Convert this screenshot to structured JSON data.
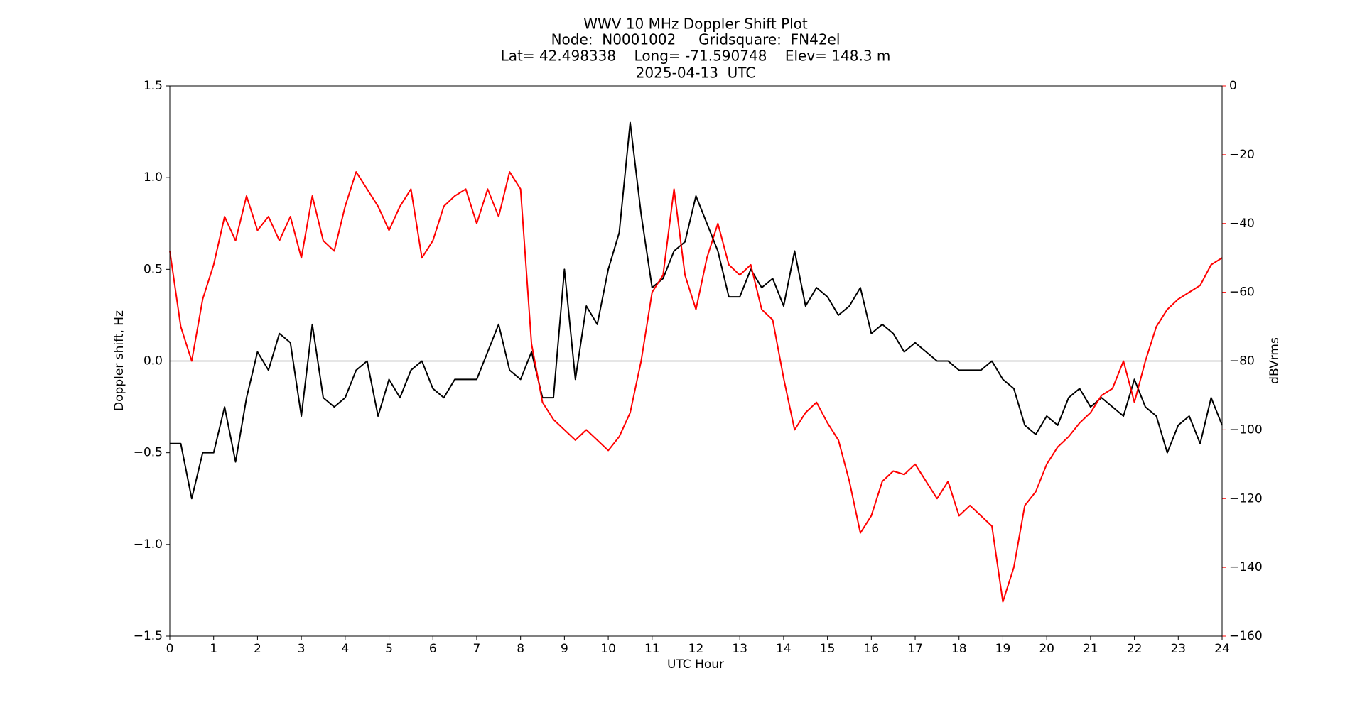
{
  "chart_data": {
    "type": "line",
    "title": [
      "WWV 10 MHz Doppler Shift Plot",
      "Node:  N0001002     Gridsquare:  FN42el",
      "Lat= 42.498338    Long= -71.590748    Elev= 148.3 m",
      "2025-04-13  UTC"
    ],
    "x_label": "UTC Hour",
    "y_label": "Doppler shift, Hz",
    "y2_label": "dBVrms",
    "y2_color": "#ff0000",
    "x": [
      0,
      0.25,
      0.5,
      0.75,
      1,
      1.25,
      1.5,
      1.75,
      2,
      2.25,
      2.5,
      2.75,
      3,
      3.25,
      3.5,
      3.75,
      4,
      4.25,
      4.5,
      4.75,
      5,
      5.25,
      5.5,
      5.75,
      6,
      6.25,
      6.5,
      6.75,
      7,
      7.25,
      7.5,
      7.75,
      8,
      8.25,
      8.5,
      8.75,
      9,
      9.25,
      9.5,
      9.75,
      10,
      10.25,
      10.5,
      10.75,
      11,
      11.25,
      11.5,
      11.75,
      12,
      12.25,
      12.5,
      12.75,
      13,
      13.25,
      13.5,
      13.75,
      14,
      14.25,
      14.5,
      14.75,
      15,
      15.25,
      15.5,
      15.75,
      16,
      16.25,
      16.5,
      16.75,
      17,
      17.25,
      17.5,
      17.75,
      18,
      18.25,
      18.5,
      18.75,
      19,
      19.25,
      19.5,
      19.75,
      20,
      20.25,
      20.5,
      20.75,
      21,
      21.25,
      21.5,
      21.75,
      22,
      22.25,
      22.5,
      22.75,
      23,
      23.25,
      23.5,
      23.75,
      24
    ],
    "series": [
      {
        "color": "#000000",
        "values": [
          -0.45,
          -0.45,
          -0.75,
          -0.5,
          -0.5,
          -0.25,
          -0.55,
          -0.2,
          0.05,
          -0.05,
          0.15,
          0.1,
          -0.3,
          0.2,
          -0.2,
          -0.25,
          -0.2,
          -0.05,
          0.0,
          -0.3,
          -0.1,
          -0.2,
          -0.05,
          0.0,
          -0.15,
          -0.2,
          -0.1,
          -0.1,
          -0.1,
          0.05,
          0.2,
          -0.05,
          -0.1,
          0.05,
          -0.2,
          -0.2,
          0.5,
          -0.1,
          0.3,
          0.2,
          0.5,
          0.7,
          1.3,
          0.8,
          0.4,
          0.45,
          0.6,
          0.65,
          0.9,
          0.75,
          0.6,
          0.35,
          0.35,
          0.5,
          0.4,
          0.45,
          0.3,
          0.6,
          0.3,
          0.4,
          0.35,
          0.25,
          0.3,
          0.4,
          0.15,
          0.2,
          0.15,
          0.05,
          0.1,
          0.05,
          0.0,
          0.0,
          -0.05,
          -0.05,
          -0.05,
          0.0,
          -0.1,
          -0.15,
          -0.35,
          -0.4,
          -0.3,
          -0.35,
          -0.2,
          -0.15,
          -0.25,
          -0.2,
          -0.25,
          -0.3,
          -0.1,
          -0.25,
          -0.3,
          -0.5,
          -0.35,
          -0.3,
          -0.45,
          -0.2,
          -0.35
        ]
      },
      {
        "color": "#ff0000",
        "axis": "y2",
        "values": [
          -48,
          -70,
          -80,
          -62,
          -52,
          -38,
          -45,
          -32,
          -42,
          -38,
          -45,
          -38,
          -50,
          -32,
          -45,
          -48,
          -35,
          -25,
          -30,
          -35,
          -42,
          -35,
          -30,
          -50,
          -45,
          -35,
          -32,
          -30,
          -40,
          -30,
          -38,
          -25,
          -30,
          -75,
          -92,
          -97,
          -100,
          -103,
          -100,
          -103,
          -106,
          -102,
          -95,
          -80,
          -60,
          -55,
          -30,
          -55,
          -65,
          -50,
          -40,
          -52,
          -55,
          -52,
          -65,
          -68,
          -85,
          -100,
          -95,
          -92,
          -98,
          -103,
          -115,
          -130,
          -125,
          -115,
          -112,
          -113,
          -110,
          -115,
          -120,
          -115,
          -125,
          -122,
          -125,
          -128,
          -150,
          -140,
          -122,
          -118,
          -110,
          -105,
          -102,
          -98,
          -95,
          -90,
          -88,
          -80,
          -92,
          -80,
          -70,
          -65,
          -62,
          -60,
          -58,
          -52,
          -50
        ]
      }
    ],
    "xlim": [
      0,
      24
    ],
    "xticks": [
      0,
      1,
      2,
      3,
      4,
      5,
      6,
      7,
      8,
      9,
      10,
      11,
      12,
      13,
      14,
      15,
      16,
      17,
      18,
      19,
      20,
      21,
      22,
      23,
      24
    ],
    "ylim": [
      -1.5,
      1.5
    ],
    "yticks": [
      {
        "value": -1.5,
        "label": "−1.5"
      },
      {
        "value": -1.0,
        "label": "−1.0"
      },
      {
        "value": -0.5,
        "label": "−0.5"
      },
      {
        "value": 0,
        "label": "0.0"
      },
      0.5,
      {
        "value": 1.0,
        "label": "1.0"
      },
      1.5
    ],
    "y2lim": [
      -160,
      0
    ],
    "y2ticks": [
      {
        "value": -160,
        "label": "−160"
      },
      {
        "value": -140,
        "label": "−140"
      },
      {
        "value": -120,
        "label": "−120"
      },
      {
        "value": -100,
        "label": "−100"
      },
      {
        "value": -80,
        "label": "−80"
      },
      {
        "value": -60,
        "label": "−60"
      },
      {
        "value": -40,
        "label": "−40"
      },
      {
        "value": -20,
        "label": "−20"
      },
      0
    ],
    "hline": 0,
    "hline_color": "#999999"
  }
}
